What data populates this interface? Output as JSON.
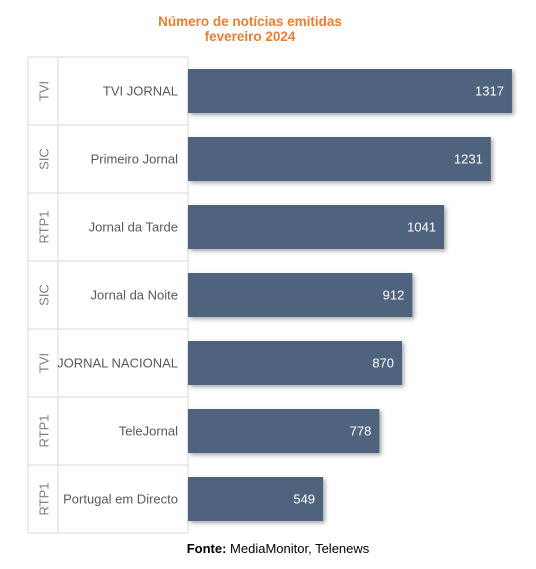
{
  "chart_data": {
    "type": "bar",
    "orientation": "horizontal",
    "title": "Número de notícias emitidas",
    "subtitle": "fevereiro 2024",
    "categories": [
      {
        "group": "TVI",
        "label": "TVI JORNAL"
      },
      {
        "group": "SIC",
        "label": "Primeiro Jornal"
      },
      {
        "group": "RTP1",
        "label": "Jornal da Tarde"
      },
      {
        "group": "SIC",
        "label": "Jornal da Noite"
      },
      {
        "group": "TVI",
        "label": "JORNAL NACIONAL"
      },
      {
        "group": "RTP1",
        "label": "TeleJornal"
      },
      {
        "group": "RTP1",
        "label": "Portugal em Directo"
      }
    ],
    "values": [
      1317,
      1231,
      1041,
      912,
      870,
      778,
      549
    ],
    "xlim": [
      0,
      1400
    ],
    "grid": false,
    "data_labels": true,
    "bar_color": "#4F647E",
    "title_color": "#ED7D31"
  },
  "source": {
    "label": "Fonte:",
    "text": " MediaMonitor, Telenews"
  }
}
